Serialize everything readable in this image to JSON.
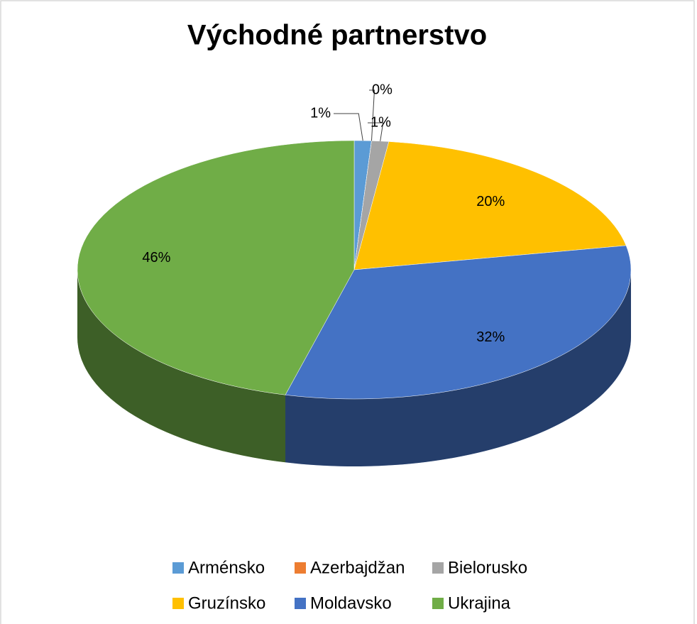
{
  "chart_data": {
    "type": "pie",
    "title": "Východné partnerstvo",
    "categories": [
      "Arménsko",
      "Azerbajdžan",
      "Bielorusko",
      "Gruzínsko",
      "Moldavsko",
      "Ukrajina"
    ],
    "values": [
      1,
      0,
      1,
      20,
      32,
      46
    ],
    "value_labels": [
      "1%",
      "0%",
      "1%",
      "20%",
      "32%",
      "46%"
    ],
    "colors": [
      "#5b9bd5",
      "#ed7d31",
      "#a5a5a5",
      "#ffc000",
      "#4472c4",
      "#70ad47"
    ],
    "legend": "bottom"
  }
}
